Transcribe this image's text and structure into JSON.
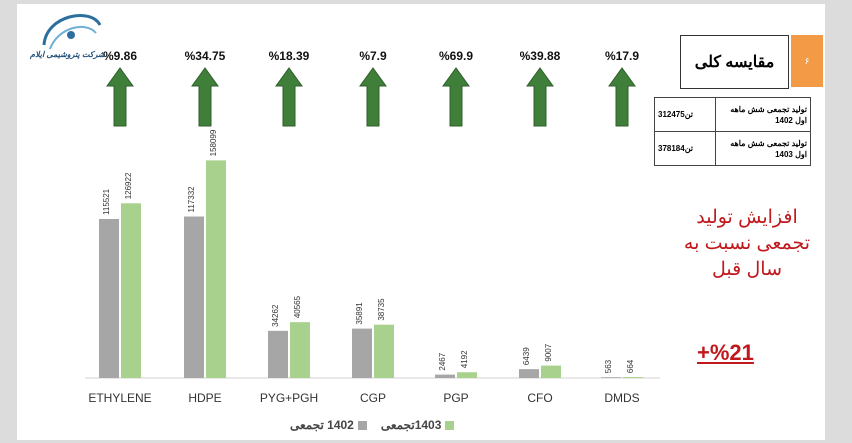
{
  "logo": {
    "caption": "شرکت پتروشیمی ایلام"
  },
  "header": {
    "title": "مقایسه کلی",
    "page_badge": "۶"
  },
  "summary_table": [
    {
      "label": "تولید تجمعی شش ماهه اول 1402",
      "value": "312475تن"
    },
    {
      "label": "تولید تجمعی شش ماهه اول 1403",
      "value": "378184تن"
    }
  ],
  "headline": "افزایش تولید تجمعی نسبت به سال قبل",
  "headline_value": "+%21",
  "colors": {
    "series_1402": "#a6a6a6",
    "series_1403": "#a9d18e",
    "arrow": "#3f7f3a",
    "accent_red": "#c0181c",
    "badge": "#f39a47"
  },
  "chart_data": {
    "type": "bar",
    "categories": [
      "ETHYLENE",
      "HDPE",
      "PYG+PGH",
      "CGP",
      "PGP",
      "CFO",
      "DMDS"
    ],
    "series": [
      {
        "name": "1402 تجمعی",
        "values": [
          115521,
          117332,
          34262,
          35891,
          2467,
          6439,
          563
        ]
      },
      {
        "name": "1403تجمعی",
        "values": [
          126922,
          158099,
          40565,
          38735,
          4192,
          9007,
          664
        ]
      }
    ],
    "growth_labels": [
      "%9.86",
      "%34.75",
      "%18.39",
      "%7.9",
      "%69.9",
      "%39.88",
      "%17.9"
    ],
    "ylim": [
      0,
      170000
    ],
    "legend": "bottom",
    "grid": false
  }
}
